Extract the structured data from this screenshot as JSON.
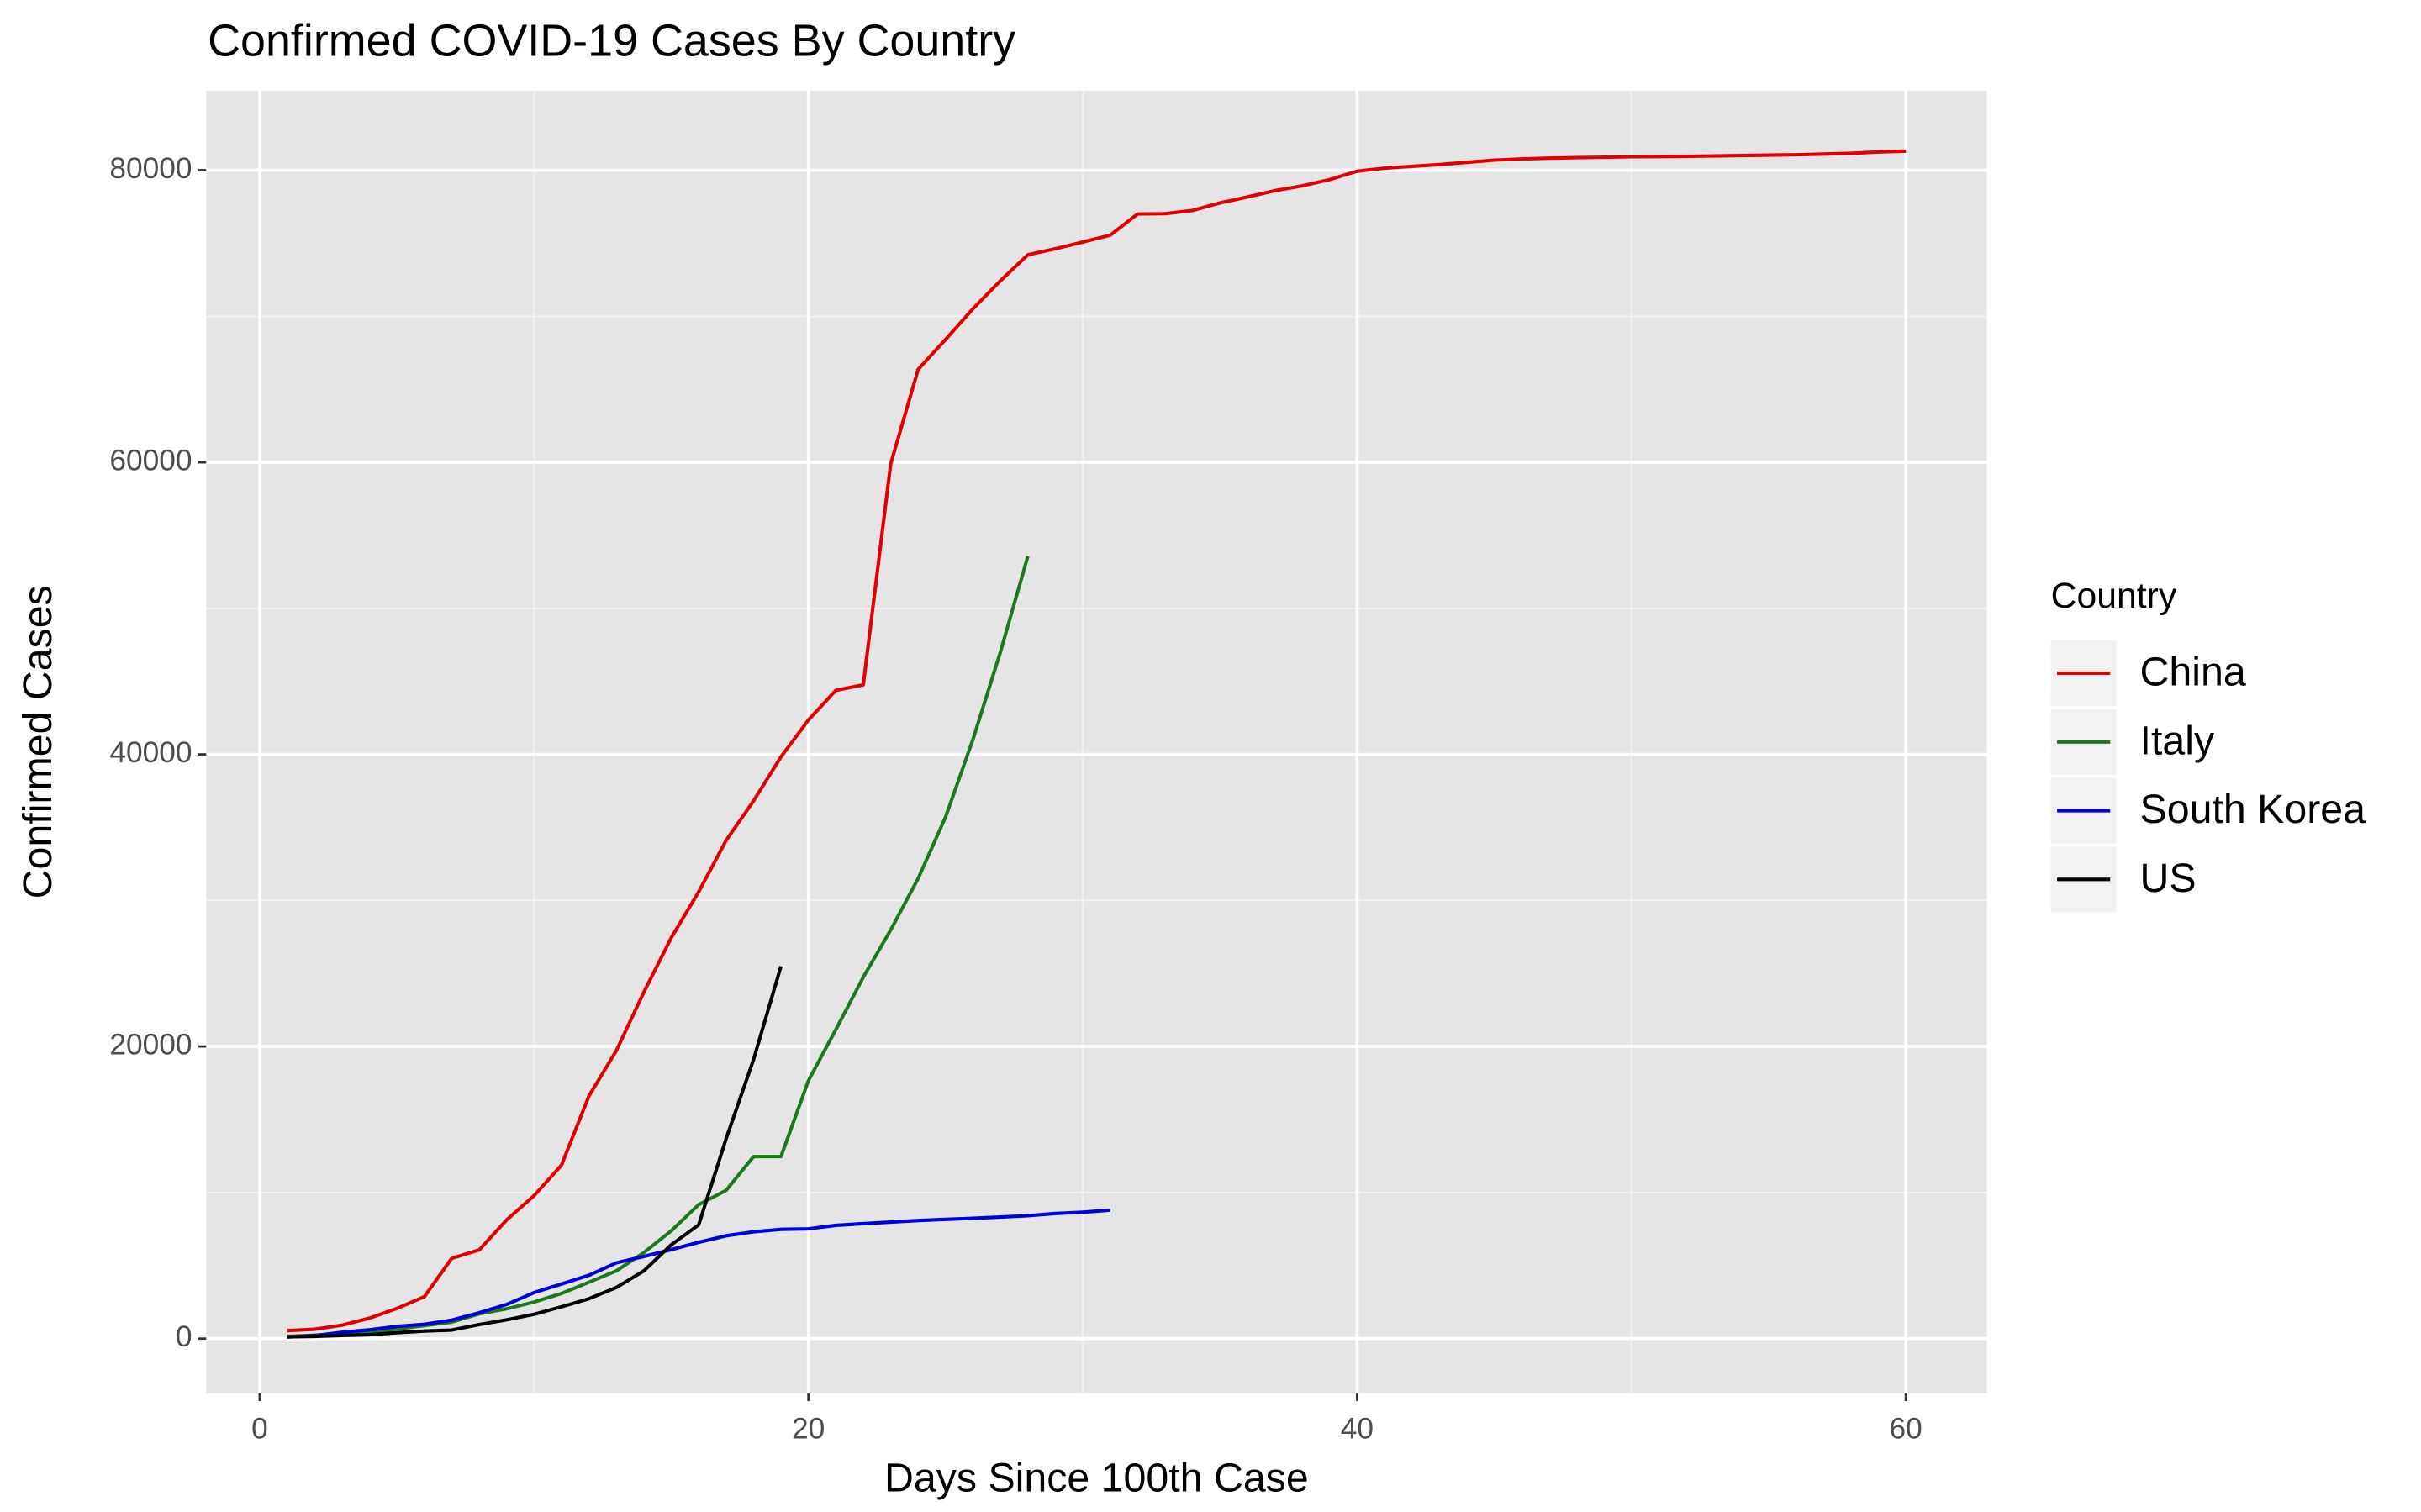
{
  "chart_data": {
    "type": "line",
    "title": "Confirmed COVID-19 Cases By Country",
    "x_label": "Days Since 100th Case",
    "y_label": "Confirmed Cases",
    "legend_title": "Country",
    "legend_position": "right",
    "grid": true,
    "x": [
      1,
      2,
      3,
      4,
      5,
      6,
      7,
      8,
      9,
      10,
      11,
      12,
      13,
      14,
      15,
      16,
      17,
      18,
      19,
      20,
      21,
      22,
      23,
      24,
      25,
      26,
      27,
      28,
      29,
      30,
      31,
      32,
      33,
      34,
      35,
      36,
      37,
      38,
      39,
      40,
      41,
      42,
      43,
      44,
      45,
      46,
      47,
      48,
      49,
      50,
      51,
      52,
      53,
      54,
      55,
      56,
      57,
      58,
      59,
      60
    ],
    "xlim": [
      -1.95,
      62.95
    ],
    "xticks": [
      0,
      20,
      40,
      60
    ],
    "ylim": [
      -3745,
      85450
    ],
    "yticks": [
      0,
      20000,
      40000,
      60000,
      80000
    ],
    "series": [
      {
        "name": "China",
        "color": "#e00000",
        "values": [
          548,
          639,
          916,
          1399,
          2062,
          2863,
          5494,
          6070,
          8124,
          9783,
          11871,
          16607,
          19716,
          23707,
          27440,
          30587,
          34110,
          36814,
          39829,
          42354,
          44386,
          44759,
          59895,
          66358,
          68413,
          70513,
          72434,
          74211,
          74619,
          75077,
          75550,
          77001,
          77022,
          77241,
          77754,
          78166,
          78600,
          78928,
          79356,
          79932,
          80136,
          80261,
          80386,
          80537,
          80690,
          80770,
          80823,
          80860,
          80887,
          80921,
          80932,
          80945,
          80977,
          81003,
          81033,
          81058,
          81102,
          81156,
          81250,
          81305
        ]
      },
      {
        "name": "Italy",
        "color": "#1a7a1a",
        "values": [
          155,
          229,
          322,
          453,
          655,
          888,
          1128,
          1694,
          2036,
          2502,
          3089,
          3858,
          4636,
          5883,
          7375,
          9172,
          10149,
          12462,
          12462,
          17660,
          21157,
          24747,
          27980,
          31506,
          35713,
          41035,
          47021,
          53578,
          null,
          null,
          null,
          null,
          null,
          null,
          null,
          null,
          null,
          null,
          null,
          null,
          null,
          null,
          null,
          null,
          null,
          null,
          null,
          null,
          null,
          null,
          null,
          null,
          null,
          null,
          null,
          null,
          null,
          null,
          null,
          null
        ]
      },
      {
        "name": "South Korea",
        "color": "#0000dd",
        "values": [
          104,
          204,
          433,
          602,
          833,
          977,
          1261,
          1766,
          2337,
          3150,
          3736,
          4335,
          5186,
          5621,
          6088,
          6593,
          7041,
          7314,
          7478,
          7513,
          7755,
          7869,
          7979,
          8086,
          8162,
          8236,
          8320,
          8413,
          8565,
          8652,
          8799,
          null,
          null,
          null,
          null,
          null,
          null,
          null,
          null,
          null,
          null,
          null,
          null,
          null,
          null,
          null,
          null,
          null,
          null,
          null,
          null,
          null,
          null,
          null,
          null,
          null,
          null,
          null,
          null,
          null
        ]
      },
      {
        "name": "US",
        "color": "#000000",
        "values": [
          118,
          149,
          217,
          262,
          402,
          518,
          583,
          959,
          1281,
          1663,
          2179,
          2727,
          3499,
          4632,
          6421,
          7786,
          13680,
          19101,
          25493,
          null,
          null,
          null,
          null,
          null,
          null,
          null,
          null,
          null,
          null,
          null,
          null,
          null,
          null,
          null,
          null,
          null,
          null,
          null,
          null,
          null,
          null,
          null,
          null,
          null,
          null,
          null,
          null,
          null,
          null,
          null,
          null,
          null,
          null,
          null,
          null,
          null,
          null,
          null,
          null,
          null
        ]
      }
    ]
  }
}
